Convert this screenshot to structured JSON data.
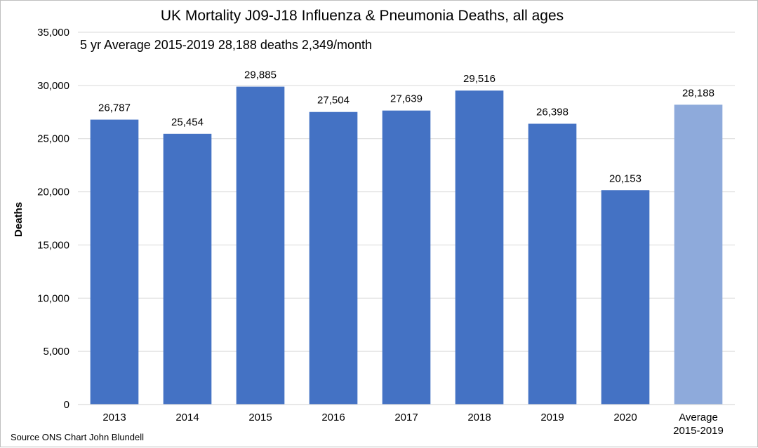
{
  "chart_data": {
    "type": "bar",
    "title": "UK Mortality J09-J18 Influenza & Pneumonia Deaths, all ages",
    "subtitle": "5 yr Average 2015-2019 28,188 deaths 2,349/month",
    "ylabel": "Deaths",
    "xlabel": "",
    "source": "Source ONS  Chart John Blundell",
    "categories": [
      "2013",
      "2014",
      "2015",
      "2016",
      "2017",
      "2018",
      "2019",
      "2020",
      [
        "Average",
        "2015-2019"
      ]
    ],
    "values": [
      26787,
      25454,
      29885,
      27504,
      27639,
      29516,
      26398,
      20153,
      28188
    ],
    "value_labels": [
      "26,787",
      "25,454",
      "29,885",
      "27,504",
      "27,639",
      "29,516",
      "26,398",
      "20,153",
      "28,188"
    ],
    "bar_colors": [
      "#4472c4",
      "#4472c4",
      "#4472c4",
      "#4472c4",
      "#4472c4",
      "#4472c4",
      "#4472c4",
      "#4472c4",
      "#8eaadb"
    ],
    "ylim": [
      0,
      35000
    ],
    "yticks": [
      0,
      5000,
      10000,
      15000,
      20000,
      25000,
      30000,
      35000
    ],
    "ytick_labels": [
      "0",
      "5,000",
      "10,000",
      "15,000",
      "20,000",
      "25,000",
      "30,000",
      "35,000"
    ],
    "grid": true,
    "gridline_color": "#d9d9d9"
  }
}
